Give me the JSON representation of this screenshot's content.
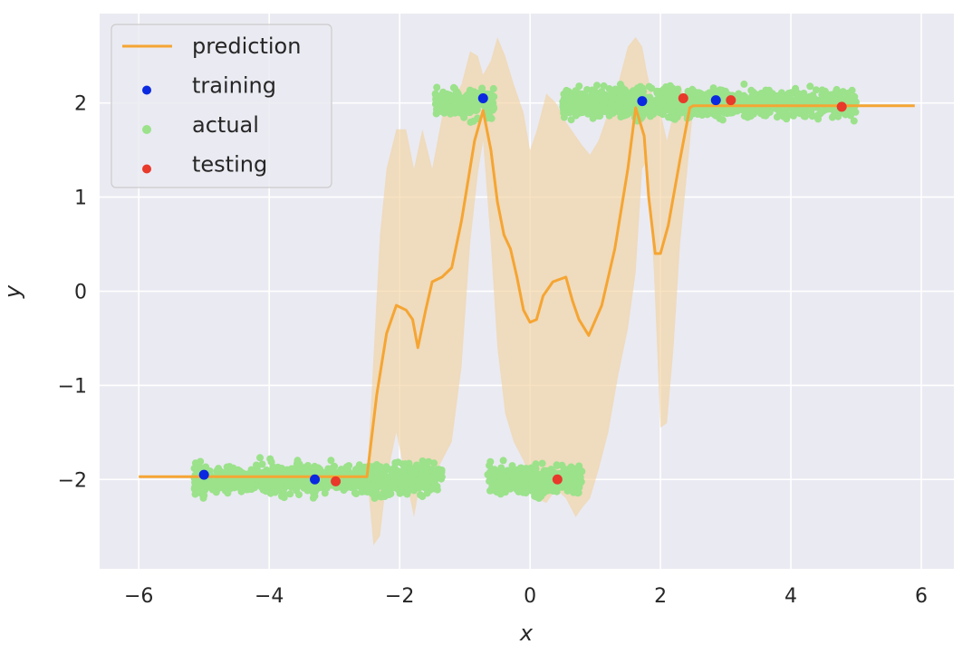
{
  "chart_data": {
    "type": "line",
    "title": "",
    "xlabel": "x",
    "ylabel": "y",
    "xlim": [
      -6.6,
      6.5
    ],
    "ylim": [
      -2.95,
      2.95
    ],
    "xticks": [
      -6,
      -4,
      -2,
      0,
      2,
      4,
      6
    ],
    "xtick_labels": [
      "−6",
      "−4",
      "−2",
      "0",
      "2",
      "4",
      "6"
    ],
    "yticks": [
      -2,
      -1,
      0,
      1,
      2
    ],
    "ytick_labels": [
      "−2",
      "−1",
      "0",
      "1",
      "2"
    ],
    "grid": true,
    "legend_position": "top-left",
    "legend": [
      {
        "label": "prediction",
        "kind": "line",
        "color": "#f5a533"
      },
      {
        "label": "training",
        "kind": "point",
        "color": "#0a29e0"
      },
      {
        "label": "actual",
        "kind": "point",
        "color": "#9be28b"
      },
      {
        "label": "testing",
        "kind": "point",
        "color": "#e8392b"
      }
    ],
    "colors": {
      "background": "#eaeaf2",
      "grid": "#ffffff",
      "prediction": "#f5a533",
      "band": "#f2d19a",
      "actual": "#9be28b",
      "training": "#0a29e0",
      "testing": "#e8392b"
    },
    "series": [
      {
        "name": "prediction",
        "kind": "line",
        "x": [
          -6.0,
          -2.5,
          -2.35,
          -2.2,
          -2.05,
          -1.9,
          -1.8,
          -1.72,
          -1.6,
          -1.5,
          -1.35,
          -1.2,
          -1.05,
          -0.85,
          -0.72,
          -0.6,
          -0.5,
          -0.4,
          -0.3,
          -0.2,
          -0.1,
          0.0,
          0.1,
          0.2,
          0.35,
          0.55,
          0.65,
          0.75,
          0.9,
          1.1,
          1.3,
          1.5,
          1.62,
          1.75,
          1.82,
          1.92,
          2.0,
          2.12,
          2.3,
          2.45,
          2.5,
          5.9
        ],
        "y": [
          -1.97,
          -1.97,
          -1.1,
          -0.45,
          -0.15,
          -0.2,
          -0.3,
          -0.6,
          -0.2,
          0.1,
          0.15,
          0.25,
          0.75,
          1.6,
          1.92,
          1.5,
          0.95,
          0.6,
          0.45,
          0.15,
          -0.2,
          -0.33,
          -0.3,
          -0.05,
          0.1,
          0.15,
          -0.1,
          -0.3,
          -0.47,
          -0.15,
          0.45,
          1.3,
          1.95,
          1.65,
          1.0,
          0.4,
          0.4,
          0.7,
          1.4,
          1.95,
          1.97,
          1.97
        ]
      },
      {
        "name": "band_upper",
        "kind": "band",
        "x": [
          -2.5,
          -2.4,
          -2.3,
          -2.2,
          -2.05,
          -1.9,
          -1.78,
          -1.65,
          -1.5,
          -1.35,
          -1.2,
          -1.05,
          -0.92,
          -0.8,
          -0.72,
          -0.6,
          -0.5,
          -0.38,
          -0.25,
          -0.1,
          0.0,
          0.1,
          0.25,
          0.4,
          0.55,
          0.7,
          0.8,
          0.92,
          1.05,
          1.2,
          1.35,
          1.5,
          1.62,
          1.72,
          1.8,
          1.9,
          2.0,
          2.1,
          2.2,
          2.3,
          2.4,
          2.5
        ],
        "y": [
          -2.0,
          -0.7,
          0.6,
          1.3,
          1.72,
          1.72,
          1.3,
          1.72,
          1.3,
          1.85,
          2.0,
          2.2,
          2.55,
          2.5,
          2.3,
          2.45,
          2.7,
          2.5,
          2.2,
          1.9,
          1.5,
          1.7,
          2.1,
          2.0,
          1.8,
          1.65,
          1.55,
          1.45,
          1.6,
          1.9,
          2.2,
          2.6,
          2.7,
          2.6,
          2.3,
          2.0,
          1.9,
          1.6,
          1.9,
          2.2,
          2.0,
          1.99
        ]
      },
      {
        "name": "band_lower",
        "kind": "band",
        "x": [
          -2.5,
          -2.4,
          -2.3,
          -2.2,
          -2.05,
          -1.9,
          -1.78,
          -1.65,
          -1.5,
          -1.35,
          -1.2,
          -1.05,
          -0.92,
          -0.8,
          -0.72,
          -0.6,
          -0.5,
          -0.38,
          -0.25,
          -0.1,
          0.0,
          0.1,
          0.25,
          0.4,
          0.55,
          0.7,
          0.8,
          0.92,
          1.05,
          1.2,
          1.35,
          1.5,
          1.62,
          1.72,
          1.8,
          1.9,
          2.0,
          2.1,
          2.2,
          2.3,
          2.4,
          2.5
        ],
        "y": [
          -1.95,
          -2.7,
          -2.6,
          -2.0,
          -1.5,
          -2.0,
          -2.4,
          -1.9,
          -2.0,
          -1.8,
          -1.6,
          -0.8,
          0.5,
          1.25,
          1.6,
          0.5,
          -0.6,
          -1.3,
          -1.6,
          -1.8,
          -2.0,
          -2.2,
          -2.25,
          -2.1,
          -2.2,
          -2.4,
          -2.3,
          -2.2,
          -1.9,
          -1.5,
          -0.9,
          -0.4,
          0.2,
          1.3,
          1.4,
          0.2,
          -1.45,
          -1.4,
          -0.6,
          0.5,
          1.2,
          1.93
        ]
      },
      {
        "name": "actual",
        "kind": "cluster",
        "clusters": [
          {
            "x_range": [
              -5.15,
              -1.35
            ],
            "y_center": -2.0,
            "y_spread": 0.16
          },
          {
            "x_range": [
              -0.65,
              0.8
            ],
            "y_center": -2.0,
            "y_spread": 0.16
          },
          {
            "x_range": [
              -1.45,
              -0.55
            ],
            "y_center": 2.0,
            "y_spread": 0.16
          },
          {
            "x_range": [
              0.5,
              5.0
            ],
            "y_center": 2.0,
            "y_spread": 0.16
          }
        ]
      },
      {
        "name": "training",
        "kind": "scatter",
        "x": [
          -5.0,
          -3.3,
          -0.72,
          1.72,
          2.85
        ],
        "y": [
          -1.95,
          -2.0,
          2.05,
          2.02,
          2.03
        ]
      },
      {
        "name": "testing",
        "kind": "scatter",
        "x": [
          -2.98,
          0.42,
          2.35,
          3.08,
          4.78
        ],
        "y": [
          -2.02,
          -2.0,
          2.05,
          2.03,
          1.96
        ]
      }
    ]
  }
}
